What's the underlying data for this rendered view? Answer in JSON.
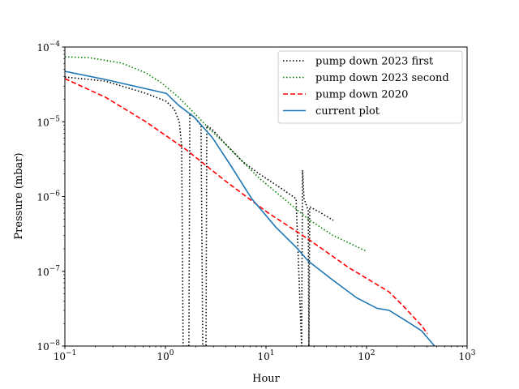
{
  "chart_data": {
    "type": "line",
    "title": "",
    "xlabel": "Hour",
    "ylabel": "Pressure (mbar)",
    "xscale": "log",
    "yscale": "log",
    "xlim": [
      0.1,
      1000
    ],
    "ylim": [
      1e-08,
      0.0001
    ],
    "x_ticks": [
      {
        "base": "10",
        "exp": "−1",
        "v": 0.1
      },
      {
        "base": "10",
        "exp": "0",
        "v": 1
      },
      {
        "base": "10",
        "exp": "1",
        "v": 10
      },
      {
        "base": "10",
        "exp": "2",
        "v": 100
      },
      {
        "base": "10",
        "exp": "3",
        "v": 1000
      }
    ],
    "y_ticks": [
      {
        "base": "10",
        "exp": "−8",
        "v": 1e-08
      },
      {
        "base": "10",
        "exp": "−7",
        "v": 1e-07
      },
      {
        "base": "10",
        "exp": "−6",
        "v": 1e-06
      },
      {
        "base": "10",
        "exp": "−5",
        "v": 1e-05
      },
      {
        "base": "10",
        "exp": "−4",
        "v": 0.0001
      }
    ],
    "grid": false,
    "legend_position": "top-right",
    "series": [
      {
        "name": "pump down 2023 first",
        "color": "#000000",
        "style": "dotted",
        "x": [
          0.1,
          0.253,
          0.64,
          1.02,
          1.23,
          1.37,
          1.45,
          1.5,
          1.71,
          1.75,
          1.95,
          2.26,
          2.35,
          2.53,
          2.58,
          2.94,
          4.1,
          5.9,
          8.6,
          12.5,
          19.9,
          22.6,
          23.1,
          23.9,
          26.3,
          26.7,
          27.2,
          34.7,
          46.7
        ],
        "y": [
          3.97e-05,
          3.5e-05,
          2.4e-05,
          1.88e-05,
          1.46e-05,
          1e-05,
          4.8e-06,
          1e-08,
          1e-08,
          1.29e-05,
          1.14e-05,
          8.9e-06,
          1e-08,
          1e-08,
          8.9e-06,
          7.8e-06,
          4.8e-06,
          2.9e-06,
          2e-06,
          1.44e-06,
          9.4e-07,
          1e-08,
          2.25e-06,
          9.4e-07,
          6.5e-07,
          1e-08,
          7.3e-07,
          6.1e-07,
          4.8e-07
        ]
      },
      {
        "name": "pump down 2023 second",
        "color": "#008000",
        "style": "dotted",
        "x": [
          0.1,
          0.174,
          0.367,
          0.64,
          0.93,
          1.35,
          1.95,
          2.8,
          4.1,
          5.9,
          8.6,
          15.0,
          26.3,
          45.8,
          100
        ],
        "y": [
          7.4e-05,
          7.2e-05,
          6.1e-05,
          4.5e-05,
          3.25e-05,
          2.13e-05,
          1.29e-05,
          7.8e-06,
          4.8e-06,
          2.9e-06,
          1.75e-06,
          9.4e-07,
          5e-07,
          3.05e-07,
          1.85e-07
        ]
      },
      {
        "name": "pump down 2020",
        "color": "#ff0000",
        "style": "dashed",
        "x": [
          0.1,
          0.253,
          0.64,
          1.62,
          4.1,
          10.4,
          26.3,
          66.5,
          168,
          244,
          353,
          403
        ],
        "y": [
          3.78e-05,
          2.13e-05,
          1e-05,
          4.2e-06,
          1.55e-06,
          6.1e-07,
          2.7e-07,
          1.12e-07,
          5.3e-08,
          3.2e-08,
          1.87e-08,
          1.46e-08
        ]
      },
      {
        "name": "current plot",
        "color": "#1f77b4",
        "style": "solid",
        "x": [
          0.1,
          0.253,
          1.02,
          1.35,
          1.95,
          2.94,
          4.5,
          7.2,
          12.5,
          19.9,
          26.3,
          45.8,
          80,
          127,
          168,
          244,
          353,
          475
        ],
        "y": [
          4.73e-05,
          3.68e-05,
          2.4e-05,
          1.66e-05,
          1.14e-05,
          6.1e-06,
          2.55e-06,
          9.4e-07,
          3.9e-07,
          2.1e-07,
          1.37e-07,
          7.7e-08,
          4.4e-08,
          3.2e-08,
          3e-08,
          2.2e-08,
          1.6e-08,
          1e-08
        ]
      }
    ]
  }
}
